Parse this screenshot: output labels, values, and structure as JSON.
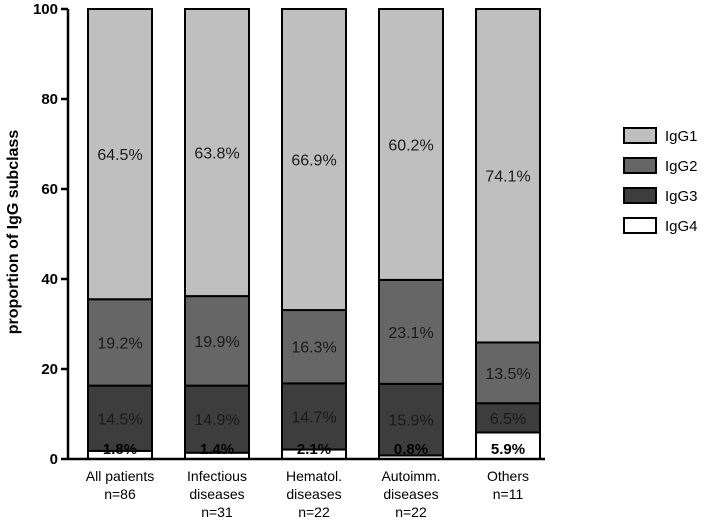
{
  "chart_data": {
    "type": "bar",
    "stacked": true,
    "xlabel": "",
    "ylabel": "proportion of IgG subclass",
    "ylim": [
      0,
      100
    ],
    "yticks": [
      "0",
      "20",
      "40",
      "60",
      "80",
      "100"
    ],
    "categories": [
      [
        "All patients",
        "n=86"
      ],
      [
        "Infectious",
        "diseases",
        "n=31"
      ],
      [
        "Hematol.",
        "diseases",
        "n=22"
      ],
      [
        "Autoimm.",
        "diseases",
        "n=22"
      ],
      [
        "Others",
        "n=11"
      ]
    ],
    "series": [
      {
        "name": "IgG4",
        "values": [
          1.8,
          1.4,
          2.1,
          0.8,
          5.9
        ],
        "labels": [
          "1.8%",
          "1.4%",
          "2.1%",
          "0.8%",
          "5.9%"
        ]
      },
      {
        "name": "IgG3",
        "values": [
          14.5,
          14.9,
          14.7,
          15.9,
          6.5
        ],
        "labels": [
          "14.5%",
          "14.9%",
          "14.7%",
          "15.9%",
          "6.5%"
        ]
      },
      {
        "name": "IgG2",
        "values": [
          19.2,
          19.9,
          16.3,
          23.1,
          13.5
        ],
        "labels": [
          "19.2%",
          "19.9%",
          "16.3%",
          "23.1%",
          "13.5%"
        ]
      },
      {
        "name": "IgG1",
        "values": [
          64.5,
          63.8,
          66.9,
          60.2,
          74.1
        ],
        "labels": [
          "64.5%",
          "63.8%",
          "66.9%",
          "60.2%",
          "74.1%"
        ]
      }
    ],
    "colors": {
      "IgG1": "#bfbfbf",
      "IgG2": "#666666",
      "IgG3": "#3d3d3d",
      "IgG4": "#ffffff"
    },
    "legend": {
      "placement": "right",
      "order": [
        "IgG1",
        "IgG2",
        "IgG3",
        "IgG4"
      ]
    },
    "grid": false
  }
}
